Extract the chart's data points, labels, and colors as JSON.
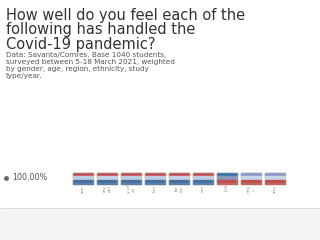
{
  "title_line1": "How well do you feel each of the",
  "title_line2": "following has handled the",
  "title_line3": "Covid-19 pandemic?",
  "sub1": "Data: Savanta/Comres. Base 1040 students,",
  "sub2": "surveyed between 5-18 March 2021, weighted",
  "sub3": "by gender, age, region, ethnicity, study",
  "sub4": "type/year.",
  "legend_text": "100.00%",
  "bg_color": "#ffffff",
  "text_color": "#555555",
  "title_color": "#333333",
  "toolbar_color": "#f5f5f5",
  "separator_color": "#dddddd",
  "icon_color": "#888888",
  "bar_sets": [
    {
      "top": "#c0504d",
      "mid": "#c0cce0",
      "bot": "#4470a0"
    },
    {
      "top": "#c0504d",
      "mid": "#c8d4e4",
      "bot": "#4470a0"
    },
    {
      "top": "#c0504d",
      "mid": "#c0cce0",
      "bot": "#4470a0"
    },
    {
      "top": "#c0504d",
      "mid": "#c0cce0",
      "bot": "#4470a0"
    },
    {
      "top": "#c0504d",
      "mid": "#c8d4e4",
      "bot": "#4470a0"
    },
    {
      "top": "#c0504d",
      "mid": "#c0cce0",
      "bot": "#4470a0"
    },
    {
      "top": "#3a6ea8",
      "mid": "#8898b8",
      "bot": "#c0504d"
    },
    {
      "top": "#8898c8",
      "mid": "#c8d8e8",
      "bot": "#c0504d"
    },
    {
      "top": "#8898c8",
      "mid": "#c8d8e8",
      "bot": "#c0504d"
    }
  ],
  "mini_labels": [
    "son",
    "ary\non)",
    "y of\n.ai.",
    "lor)",
    "for\nion",
    "ent",
    "JHS",
    "nity\n.i.",
    "sity"
  ],
  "title_fontsize": 10.5,
  "sub_fontsize": 5.2,
  "legend_fontsize": 5.8
}
